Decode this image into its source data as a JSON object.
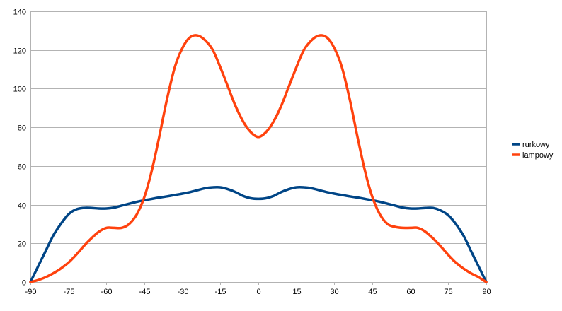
{
  "chart_data": {
    "type": "line",
    "title": "",
    "xlabel": "",
    "ylabel": "",
    "xlim": [
      -90,
      90
    ],
    "ylim": [
      0,
      140
    ],
    "x_ticks": [
      -90,
      -75,
      -60,
      -45,
      -30,
      -15,
      0,
      15,
      30,
      45,
      60,
      75,
      90
    ],
    "y_ticks": [
      0,
      20,
      40,
      60,
      80,
      100,
      120,
      140
    ],
    "grid": "horizontal",
    "legend_position": "right",
    "series": [
      {
        "name": "rurkowy",
        "color": "#004586",
        "points": [
          [
            -90,
            0
          ],
          [
            -87,
            8
          ],
          [
            -84,
            16
          ],
          [
            -81,
            24
          ],
          [
            -78,
            30
          ],
          [
            -75,
            35
          ],
          [
            -72,
            37.5
          ],
          [
            -69,
            38.3
          ],
          [
            -66,
            38.3
          ],
          [
            -63,
            38
          ],
          [
            -60,
            38
          ],
          [
            -57,
            38.5
          ],
          [
            -54,
            39.5
          ],
          [
            -51,
            40.5
          ],
          [
            -48,
            41.5
          ],
          [
            -45,
            42.3
          ],
          [
            -42,
            43
          ],
          [
            -39,
            43.7
          ],
          [
            -36,
            44.3
          ],
          [
            -33,
            45
          ],
          [
            -30,
            45.7
          ],
          [
            -27,
            46.5
          ],
          [
            -24,
            47.5
          ],
          [
            -21,
            48.5
          ],
          [
            -18,
            49
          ],
          [
            -15,
            49
          ],
          [
            -12,
            48
          ],
          [
            -9,
            46.5
          ],
          [
            -6,
            44.5
          ],
          [
            -3,
            43.3
          ],
          [
            0,
            43
          ],
          [
            3,
            43.3
          ],
          [
            6,
            44.5
          ],
          [
            9,
            46.5
          ],
          [
            12,
            48
          ],
          [
            15,
            49
          ],
          [
            18,
            49
          ],
          [
            21,
            48.5
          ],
          [
            24,
            47.5
          ],
          [
            27,
            46.5
          ],
          [
            30,
            45.7
          ],
          [
            33,
            45
          ],
          [
            36,
            44.3
          ],
          [
            39,
            43.7
          ],
          [
            42,
            43
          ],
          [
            45,
            42.3
          ],
          [
            48,
            41.5
          ],
          [
            51,
            40.5
          ],
          [
            54,
            39.5
          ],
          [
            57,
            38.5
          ],
          [
            60,
            38
          ],
          [
            63,
            38
          ],
          [
            66,
            38.3
          ],
          [
            69,
            38.3
          ],
          [
            72,
            37
          ],
          [
            75,
            34.5
          ],
          [
            78,
            30
          ],
          [
            81,
            24
          ],
          [
            84,
            16
          ],
          [
            87,
            8
          ],
          [
            90,
            0
          ]
        ]
      },
      {
        "name": "lampowy",
        "color": "#ff420e",
        "points": [
          [
            -90,
            0
          ],
          [
            -87,
            1
          ],
          [
            -84,
            2.5
          ],
          [
            -81,
            4.5
          ],
          [
            -78,
            7
          ],
          [
            -75,
            10
          ],
          [
            -72,
            14
          ],
          [
            -69,
            18.5
          ],
          [
            -66,
            22.5
          ],
          [
            -63,
            26
          ],
          [
            -60,
            28
          ],
          [
            -57,
            28
          ],
          [
            -54,
            28
          ],
          [
            -51,
            30
          ],
          [
            -48,
            35
          ],
          [
            -45,
            44
          ],
          [
            -42,
            58
          ],
          [
            -39,
            76
          ],
          [
            -36,
            95
          ],
          [
            -33,
            111
          ],
          [
            -30,
            121
          ],
          [
            -27,
            126.5
          ],
          [
            -24,
            127.5
          ],
          [
            -21,
            125
          ],
          [
            -18,
            120
          ],
          [
            -15,
            111
          ],
          [
            -12,
            101
          ],
          [
            -9,
            91
          ],
          [
            -6,
            83
          ],
          [
            -3,
            77.5
          ],
          [
            0,
            75
          ],
          [
            3,
            77.5
          ],
          [
            6,
            83
          ],
          [
            9,
            91
          ],
          [
            12,
            101
          ],
          [
            15,
            111
          ],
          [
            18,
            120
          ],
          [
            21,
            125
          ],
          [
            24,
            127.5
          ],
          [
            27,
            126.5
          ],
          [
            30,
            121
          ],
          [
            33,
            111
          ],
          [
            36,
            95
          ],
          [
            39,
            76
          ],
          [
            42,
            58
          ],
          [
            45,
            44
          ],
          [
            48,
            35
          ],
          [
            51,
            30
          ],
          [
            54,
            28.5
          ],
          [
            57,
            28
          ],
          [
            60,
            28
          ],
          [
            63,
            28
          ],
          [
            66,
            26
          ],
          [
            69,
            22.5
          ],
          [
            72,
            18.5
          ],
          [
            75,
            14
          ],
          [
            78,
            10
          ],
          [
            81,
            7
          ],
          [
            84,
            4.5
          ],
          [
            87,
            2.5
          ],
          [
            90,
            0
          ]
        ]
      }
    ]
  }
}
